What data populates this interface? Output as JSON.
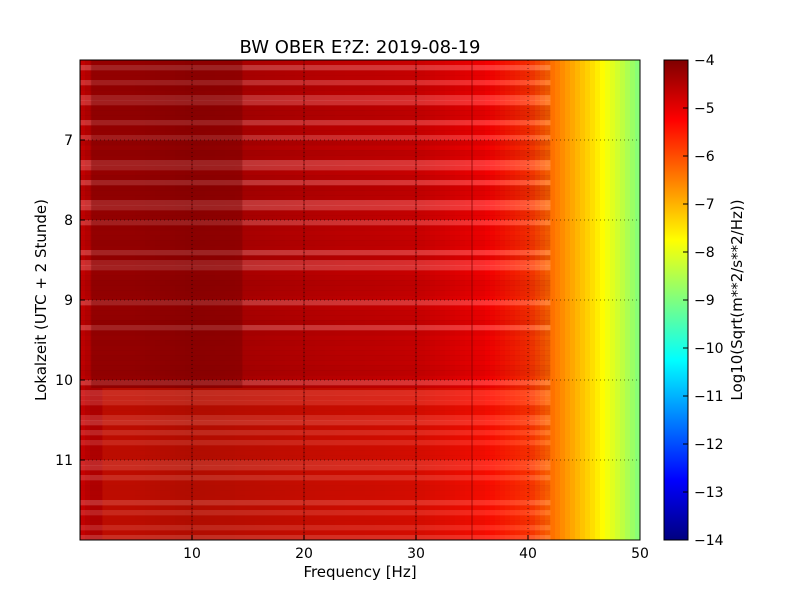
{
  "chart_data": {
    "type": "heatmap",
    "title": "BW OBER E?Z: 2019-08-19",
    "xlabel": "Frequency [Hz]",
    "ylabel": "Lokalzeit (UTC + 2 Stunde)",
    "xlim": [
      0,
      50
    ],
    "ylim": [
      12,
      6
    ],
    "xticks": [
      10,
      20,
      30,
      40,
      50
    ],
    "yticks": [
      7,
      8,
      9,
      10,
      11
    ],
    "grid": true,
    "colormap": "jet",
    "colorbar": {
      "label": "Log10(Sqrt(m**2/s**2/Hz))",
      "range": [
        -14,
        -4
      ],
      "ticks": [
        -4,
        -5,
        -6,
        -7,
        -8,
        -9,
        -10,
        -11,
        -12,
        -13,
        -14
      ]
    },
    "frequency_profile_hz": [
      0,
      1,
      5,
      10,
      14,
      20,
      30,
      36,
      40,
      42,
      44,
      46,
      48,
      50
    ],
    "frequency_profile_log10": [
      -4.8,
      -4.5,
      -4.5,
      -4.35,
      -4.45,
      -4.6,
      -4.8,
      -5.2,
      -5.7,
      -6.3,
      -6.9,
      -7.5,
      -8.2,
      -9.0
    ],
    "notes": {
      "quieter_band_after_hour": 10.1,
      "narrow_lines_hz": [
        10,
        20,
        30,
        35
      ]
    }
  }
}
